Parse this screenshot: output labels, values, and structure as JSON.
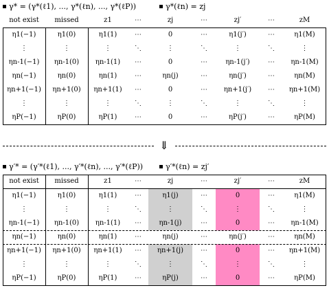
{
  "top": {
    "caption_left": "γ* = (γ*(ℓ1), ..., γ*(ℓn), ..., γ*(ℓP))",
    "caption_right": "γ*(ℓn) = zj",
    "headers": [
      "not exist",
      "missed",
      "z1",
      "⋯",
      "zj",
      "⋯",
      "zj′",
      "⋯",
      "zM"
    ],
    "rows": [
      [
        "η1(−1)",
        "η1(0)",
        "η1(1)",
        "⋯",
        "0",
        "⋯",
        "η1(j′)",
        "⋯",
        "η1(M)"
      ],
      [
        "⋮",
        "⋮",
        "⋮",
        "⋱",
        "⋮",
        "⋱",
        "⋮",
        "⋱",
        "⋮"
      ],
      [
        "ηn-1(−1)",
        "ηn-1(0)",
        "ηn-1(1)",
        "⋯",
        "0",
        "⋯",
        "ηn-1(j′)",
        "⋯",
        "ηn-1(M)"
      ],
      [
        "ηn(−1)",
        "ηn(0)",
        "ηn(1)",
        "⋯",
        "ηn(j)",
        "⋯",
        "ηn(j′)",
        "⋯",
        "ηn(M)"
      ],
      [
        "ηn+1(−1)",
        "ηn+1(0)",
        "ηn+1(1)",
        "⋯",
        "0",
        "⋯",
        "ηn+1(j′)",
        "⋯",
        "ηn+1(M)"
      ],
      [
        "⋮",
        "⋮",
        "⋮",
        "⋱",
        "⋮",
        "⋱",
        "⋮",
        "⋱",
        "⋮"
      ],
      [
        "ηP(−1)",
        "ηP(0)",
        "ηP(1)",
        "⋯",
        "0",
        "⋯",
        "ηP(j′)",
        "⋯",
        "ηP(M)"
      ]
    ]
  },
  "arrow": "⇓",
  "bottom": {
    "caption_left": "γ′* = (γ′*(ℓ1), ..., γ′*(ℓn), ..., γ′*(ℓP))",
    "caption_right": "γ′*(ℓn) = zj′",
    "headers": [
      "not exist",
      "missed",
      "z1",
      "⋯",
      "zj",
      "⋯",
      "zj′",
      "⋯",
      "zM"
    ],
    "rows": [
      [
        "η1(−1)",
        "η1(0)",
        "η1(1)",
        "⋯",
        "η1(j)",
        "⋯",
        "0",
        "⋯",
        "η1(M)"
      ],
      [
        "⋮",
        "⋮",
        "⋮",
        "⋱",
        "⋮",
        "⋱",
        "⋮",
        "⋱",
        "⋮"
      ],
      [
        "ηn-1(−1)",
        "ηn-1(0)",
        "ηn-1(1)",
        "⋯",
        "ηn-1(j)",
        "⋯",
        "0",
        "⋯",
        "ηn-1(M)"
      ],
      [
        "ηn(−1)",
        "ηn(0)",
        "ηn(1)",
        "⋯",
        "ηn(j)",
        "⋯",
        "ηn(j′)",
        "⋯",
        "ηn(M)"
      ],
      [
        "ηn+1(−1)",
        "ηn+1(0)",
        "ηn+1(1)",
        "⋯",
        "ηn+1(j)",
        "⋯",
        "0",
        "⋯",
        "ηn+1(M)"
      ],
      [
        "⋮",
        "⋮",
        "⋮",
        "⋱",
        "⋮",
        "⋱",
        "⋮",
        "⋱",
        "⋮"
      ],
      [
        "ηP(−1)",
        "ηP(0)",
        "ηP(1)",
        "⋯",
        "ηP(j)",
        "⋯",
        "0",
        "⋯",
        "ηP(M)"
      ]
    ]
  },
  "colors": {
    "highlight_gray": "#d0d0d0",
    "highlight_pink": "#ff8ac4"
  }
}
